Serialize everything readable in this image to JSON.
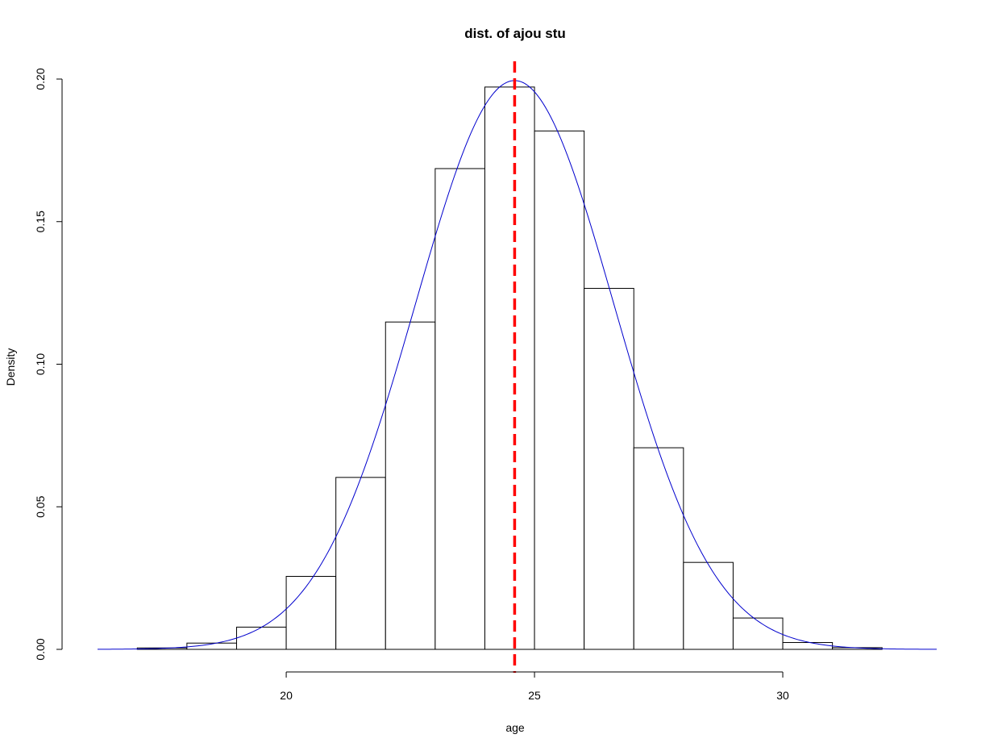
{
  "chart_data": {
    "type": "bar",
    "title": "dist. of ajou stu",
    "xlabel": "age",
    "ylabel": "Density",
    "xlim": [
      16.2,
      33.1
    ],
    "ylim": [
      0,
      0.2
    ],
    "x_ticks": [
      20,
      25,
      30
    ],
    "x_tick_labels": [
      "20",
      "25",
      "30"
    ],
    "y_ticks": [
      0,
      0.05,
      0.1,
      0.15,
      0.2
    ],
    "y_tick_labels": [
      "0.00",
      "0.05",
      "0.10",
      "0.15",
      "0.20"
    ],
    "bins": [
      {
        "from": 17,
        "to": 18,
        "density": 0.0005
      },
      {
        "from": 18,
        "to": 19,
        "density": 0.0022
      },
      {
        "from": 19,
        "to": 20,
        "density": 0.0078
      },
      {
        "from": 20,
        "to": 21,
        "density": 0.0256
      },
      {
        "from": 21,
        "to": 22,
        "density": 0.0603
      },
      {
        "from": 22,
        "to": 23,
        "density": 0.1148
      },
      {
        "from": 23,
        "to": 24,
        "density": 0.1686
      },
      {
        "from": 24,
        "to": 25,
        "density": 0.1972
      },
      {
        "from": 25,
        "to": 26,
        "density": 0.1818
      },
      {
        "from": 26,
        "to": 27,
        "density": 0.1266
      },
      {
        "from": 27,
        "to": 28,
        "density": 0.0707
      },
      {
        "from": 28,
        "to": 29,
        "density": 0.0305
      },
      {
        "from": 29,
        "to": 30,
        "density": 0.011
      },
      {
        "from": 30,
        "to": 31,
        "density": 0.0024
      },
      {
        "from": 31,
        "to": 32,
        "density": 0.0006
      }
    ],
    "density_curve": {
      "type": "normal",
      "mean": 24.6,
      "sd": 2.0,
      "color": "#0000cd"
    },
    "mean_line": {
      "x": 24.6,
      "color": "#ff0000",
      "style": "dashed"
    },
    "grid": false,
    "bar_fill": "#ffffff",
    "bar_stroke": "#000000"
  }
}
